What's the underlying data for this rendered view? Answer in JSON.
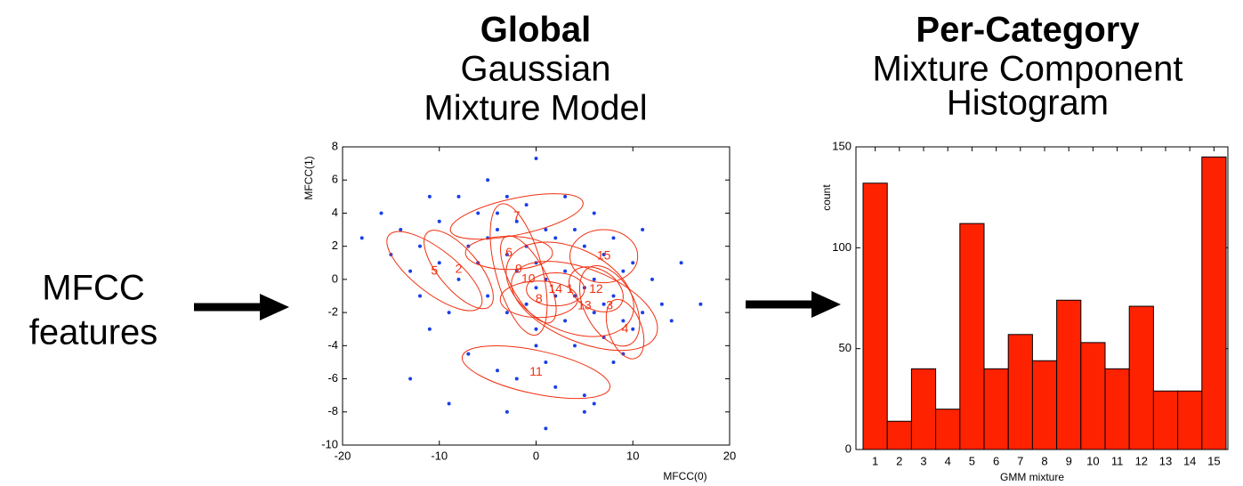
{
  "input_label": {
    "line1": "MFCC",
    "line2": "features"
  },
  "left_title": {
    "bold": "Global",
    "line2": "Gaussian",
    "line3": "Mixture Model"
  },
  "right_title": {
    "bold": "Per-Category",
    "line2": "Mixture Component",
    "line3": "Histogram"
  },
  "chart_data": [
    {
      "type": "scatter",
      "x_label": "MFCC(0)",
      "y_label": "MFCC(1)",
      "xlim": [
        -20,
        20
      ],
      "ylim": [
        -10,
        8
      ],
      "xticks": [
        -20,
        -10,
        0,
        10,
        20
      ],
      "yticks": [
        -10,
        -8,
        -6,
        -4,
        -2,
        0,
        2,
        4,
        6,
        8
      ],
      "color": "#1a3fe8",
      "ellipse_color": "#f03010",
      "x": [
        -18,
        -16,
        -15,
        -14,
        -13,
        -12,
        -12,
        -11,
        -10,
        -10,
        -9,
        -8,
        -8,
        -7,
        -7,
        -6,
        -6,
        -5,
        -5,
        -5,
        -4,
        -4,
        -4,
        -3,
        -3,
        -3,
        -2,
        -2,
        -2,
        -1,
        -1,
        -1,
        0,
        0,
        0,
        0,
        1,
        1,
        1,
        2,
        2,
        2,
        3,
        3,
        3,
        4,
        4,
        4,
        5,
        5,
        5,
        6,
        6,
        6,
        7,
        7,
        7,
        8,
        8,
        8,
        9,
        9,
        9,
        10,
        10,
        11,
        11,
        12,
        13,
        14,
        15,
        17,
        -13,
        -11,
        -9,
        -3,
        1,
        5,
        6,
        0
      ],
      "y": [
        2.5,
        4,
        1.5,
        3,
        0.5,
        -1,
        2,
        -3,
        3.5,
        1,
        -2,
        5,
        0,
        2,
        -4.5,
        4,
        1,
        6,
        2.5,
        -1,
        4,
        3,
        -5.5,
        5,
        1.5,
        -2,
        3.5,
        0.5,
        -6,
        2,
        -1.5,
        4.5,
        7.3,
        1,
        -0.5,
        -3,
        3,
        0,
        -5,
        2.5,
        -1,
        -6.5,
        5,
        0.5,
        -2.5,
        3,
        -1,
        -4,
        2,
        -0.5,
        -7,
        4,
        0,
        -2,
        1.5,
        -1.5,
        -3.5,
        2.5,
        -1,
        -5,
        0.5,
        -2.5,
        -4.5,
        1,
        -3,
        3,
        -2,
        0,
        -1.5,
        -2.5,
        1,
        -1.5,
        -6,
        5,
        -7.5,
        -8,
        -9,
        -8,
        -7.5,
        -4
      ],
      "components": [
        {
          "label": "5",
          "cx": -10.5,
          "cy": 0.5,
          "rx": 6,
          "ry": 1.3,
          "angle": 38
        },
        {
          "label": "2",
          "cx": -8,
          "cy": 0.6,
          "rx": 5,
          "ry": 1.2,
          "angle": 50
        },
        {
          "label": "7",
          "cx": -2,
          "cy": 3.8,
          "rx": 7,
          "ry": 1.1,
          "angle": -12
        },
        {
          "label": "11",
          "cx": 0,
          "cy": -5.6,
          "rx": 7.8,
          "ry": 1.3,
          "angle": 12
        },
        {
          "label": "15",
          "cx": 7,
          "cy": 1.4,
          "rx": 3.5,
          "ry": 1.6,
          "angle": 0
        },
        {
          "label": "12",
          "cx": 6.2,
          "cy": -0.6,
          "rx": 3,
          "ry": 1.2,
          "angle": 30
        },
        {
          "label": "3",
          "cx": 7.6,
          "cy": -1.6,
          "rx": 4.5,
          "ry": 1.5,
          "angle": 62
        },
        {
          "label": "4",
          "cx": 9.2,
          "cy": -3,
          "rx": 3.2,
          "ry": 1,
          "angle": 70
        },
        {
          "label": "13",
          "cx": 5,
          "cy": -1.6,
          "rx": 8,
          "ry": 2.2,
          "angle": 22
        },
        {
          "label": "10",
          "cx": -0.8,
          "cy": 0,
          "rx": 5,
          "ry": 1.1,
          "angle": 62
        },
        {
          "label": "6",
          "cx": -2.8,
          "cy": 1.6,
          "rx": 4.5,
          "ry": 1,
          "angle": 0
        },
        {
          "label": "9",
          "cx": -1.8,
          "cy": 0.6,
          "rx": 7,
          "ry": 1.4,
          "angle": 75
        },
        {
          "label": "8",
          "cx": 0.3,
          "cy": -1.2,
          "rx": 4,
          "ry": 1.1,
          "angle": 0
        },
        {
          "label": "1",
          "cx": 3.5,
          "cy": -0.6,
          "rx": 7,
          "ry": 2.5,
          "angle": 25
        },
        {
          "label": "14",
          "cx": 2,
          "cy": -0.6,
          "rx": 3,
          "ry": 1,
          "angle": 0
        }
      ]
    },
    {
      "type": "bar",
      "x_label": "GMM mixture",
      "y_label": "count",
      "color": "#ff2200",
      "categories": [
        "1",
        "2",
        "3",
        "4",
        "5",
        "6",
        "7",
        "8",
        "9",
        "10",
        "11",
        "12",
        "13",
        "14",
        "15"
      ],
      "values": [
        132,
        14,
        40,
        20,
        112,
        40,
        57,
        44,
        74,
        53,
        40,
        71,
        29,
        29,
        145
      ],
      "ylim": [
        0,
        150
      ],
      "yticks": [
        0,
        50,
        100,
        150
      ]
    }
  ]
}
